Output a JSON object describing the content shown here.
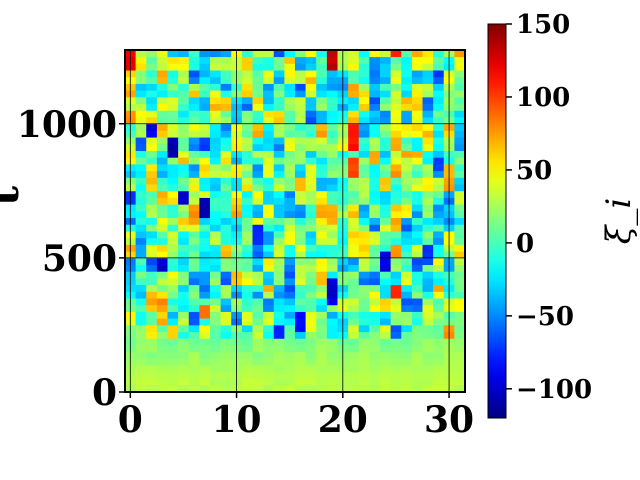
{
  "chart_data": {
    "type": "heatmap",
    "title": "",
    "xlabel": "",
    "ylabel": "t",
    "colorbar_label": "ξ_i",
    "colormap": "jet",
    "x_range": [
      -0.5,
      31.5
    ],
    "y_range": [
      0,
      1275
    ],
    "value_range": [
      -120,
      150
    ],
    "x_ticks": [
      0,
      10,
      20,
      30
    ],
    "x_tick_labels": [
      "0",
      "10",
      "20",
      "30"
    ],
    "y_ticks": [
      0,
      500,
      1000
    ],
    "y_tick_labels": [
      "0",
      "500",
      "1000"
    ],
    "colorbar_ticks": [
      150,
      100,
      50,
      0,
      -50,
      -100
    ],
    "colorbar_tick_labels": [
      "150",
      "100",
      "50",
      "0",
      "−50",
      "−100"
    ],
    "grid": true,
    "n_columns": 32,
    "t_bin": 25,
    "column_onset_t": [
      200,
      210,
      205,
      195,
      210,
      200,
      215,
      200,
      210,
      205,
      200,
      215,
      210,
      200,
      205,
      240,
      210,
      220,
      215,
      200,
      195,
      210,
      215,
      200,
      205,
      210,
      225,
      240,
      230,
      260,
      280,
      300
    ],
    "features": [
      {
        "col": 0,
        "t0": 1200,
        "t1": 1275,
        "v": 120
      },
      {
        "col": 19,
        "t0": 1210,
        "t1": 1275,
        "v": 130
      },
      {
        "col": 25,
        "t0": 1250,
        "t1": 1275,
        "v": 110
      },
      {
        "col": 21,
        "t0": 900,
        "t1": 1000,
        "v": 115
      },
      {
        "col": 21,
        "t0": 800,
        "t1": 880,
        "v": 95
      },
      {
        "col": 25,
        "t0": 340,
        "t1": 410,
        "v": 110
      },
      {
        "col": 7,
        "t0": 270,
        "t1": 330,
        "v": 90
      },
      {
        "col": 30,
        "t0": 210,
        "t1": 260,
        "v": 80
      },
      {
        "col": 4,
        "t0": 880,
        "t1": 950,
        "v": -110
      },
      {
        "col": 5,
        "t0": 700,
        "t1": 760,
        "v": -100
      },
      {
        "col": 7,
        "t0": 650,
        "t1": 720,
        "v": -110
      },
      {
        "col": 3,
        "t0": 440,
        "t1": 500,
        "v": -100
      },
      {
        "col": 19,
        "t0": 320,
        "t1": 420,
        "v": -95
      },
      {
        "col": 24,
        "t0": 440,
        "t1": 520,
        "v": -90
      },
      {
        "col": 16,
        "t0": 230,
        "t1": 290,
        "v": -85
      },
      {
        "col": 14,
        "t0": 200,
        "t1": 260,
        "v": -80
      },
      {
        "col": 2,
        "t0": 940,
        "t1": 990,
        "v": -90
      },
      {
        "col": 12,
        "t0": 560,
        "t1": 620,
        "v": -75
      },
      {
        "col": 28,
        "t0": 480,
        "t1": 560,
        "v": -70
      }
    ]
  }
}
